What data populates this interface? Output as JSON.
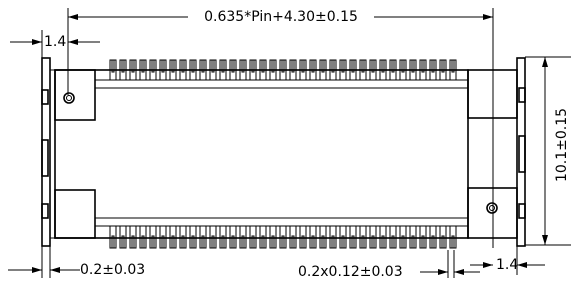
{
  "dimensions": {
    "overall_length": "0.635*Pin+4.30±0.15",
    "left_offset": "1.4",
    "bracket_thickness": "0.2±0.03",
    "pin_size": "0.2x0.12±0.03",
    "right_offset": "1.4",
    "width": "10.1±0.15"
  }
}
